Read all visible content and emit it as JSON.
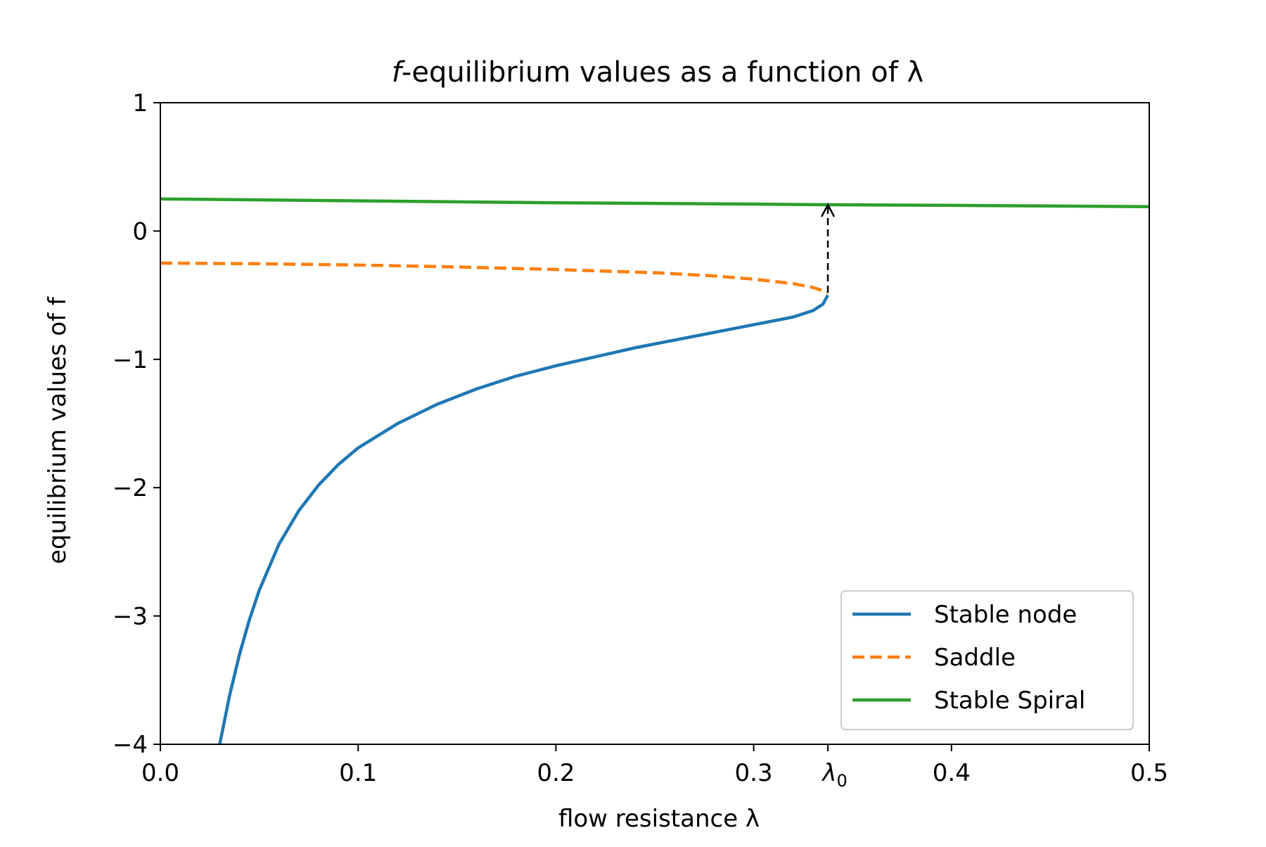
{
  "chart_data": {
    "type": "line",
    "title": {
      "prefix": "f",
      "suffix": "-equilibrium values as a function of λ"
    },
    "xlabel": "flow resistance λ",
    "ylabel": "equilibrium values of f",
    "xlim": [
      0.0,
      0.5
    ],
    "ylim": [
      -4,
      1
    ],
    "x_ticks": [
      {
        "value": 0.0,
        "label": "0.0"
      },
      {
        "value": 0.1,
        "label": "0.1"
      },
      {
        "value": 0.2,
        "label": "0.2"
      },
      {
        "value": 0.3,
        "label": "0.3"
      },
      {
        "value": 0.4,
        "label": "0.4"
      },
      {
        "value": 0.5,
        "label": "0.5"
      }
    ],
    "y_ticks": [
      {
        "value": 1,
        "label": "1"
      },
      {
        "value": 0,
        "label": "0"
      },
      {
        "value": -1,
        "label": "−1"
      },
      {
        "value": -2,
        "label": "−2"
      },
      {
        "value": -3,
        "label": "−3"
      },
      {
        "value": -4,
        "label": "−4"
      }
    ],
    "special_tick": {
      "value": 0.3375,
      "label": "λ",
      "subscript": "0"
    },
    "grid": false,
    "legend_position": "lower-right",
    "series": [
      {
        "name": "Stable node",
        "color": "#1f77b4",
        "style": "solid",
        "points": [
          [
            0.03,
            -4.0
          ],
          [
            0.035,
            -3.62
          ],
          [
            0.04,
            -3.3
          ],
          [
            0.045,
            -3.03
          ],
          [
            0.05,
            -2.8
          ],
          [
            0.06,
            -2.44
          ],
          [
            0.07,
            -2.18
          ],
          [
            0.08,
            -1.98
          ],
          [
            0.09,
            -1.82
          ],
          [
            0.1,
            -1.69
          ],
          [
            0.12,
            -1.5
          ],
          [
            0.14,
            -1.35
          ],
          [
            0.16,
            -1.23
          ],
          [
            0.18,
            -1.13
          ],
          [
            0.2,
            -1.05
          ],
          [
            0.22,
            -0.98
          ],
          [
            0.24,
            -0.91
          ],
          [
            0.26,
            -0.85
          ],
          [
            0.28,
            -0.79
          ],
          [
            0.3,
            -0.73
          ],
          [
            0.32,
            -0.67
          ],
          [
            0.33,
            -0.62
          ],
          [
            0.335,
            -0.57
          ],
          [
            0.3375,
            -0.5
          ]
        ]
      },
      {
        "name": "Saddle",
        "color": "#ff7f0e",
        "style": "dashed",
        "points": [
          [
            0.0,
            -0.25
          ],
          [
            0.05,
            -0.255
          ],
          [
            0.1,
            -0.265
          ],
          [
            0.15,
            -0.28
          ],
          [
            0.2,
            -0.3
          ],
          [
            0.25,
            -0.325
          ],
          [
            0.28,
            -0.35
          ],
          [
            0.3,
            -0.375
          ],
          [
            0.32,
            -0.41
          ],
          [
            0.33,
            -0.44
          ],
          [
            0.3375,
            -0.48
          ]
        ]
      },
      {
        "name": "Stable Spiral",
        "color": "#2ca02c",
        "style": "solid",
        "points": [
          [
            0.0,
            0.25
          ],
          [
            0.1,
            0.235
          ],
          [
            0.2,
            0.22
          ],
          [
            0.3,
            0.21
          ],
          [
            0.3375,
            0.205
          ],
          [
            0.4,
            0.2
          ],
          [
            0.5,
            0.19
          ]
        ]
      }
    ],
    "annotation": {
      "type": "dashed-arrow",
      "color": "#000000",
      "from": [
        0.3375,
        -0.48
      ],
      "to": [
        0.3375,
        0.205
      ]
    }
  }
}
